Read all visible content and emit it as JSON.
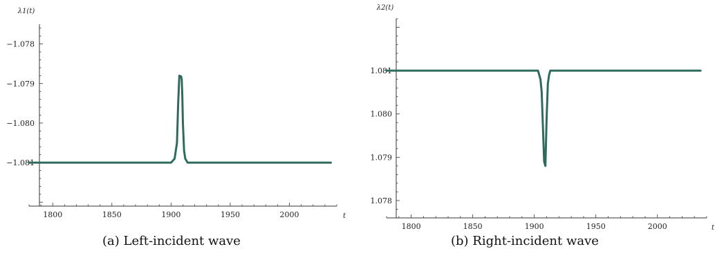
{
  "chart_data": [
    {
      "type": "line",
      "caption": "(a) Left-incident wave",
      "ylabel": "λ1(t)",
      "xlabel": "t",
      "xlim": [
        1780,
        2040
      ],
      "ylim": [
        -1.0821,
        -1.0775
      ],
      "x_ticks": [
        1800,
        1850,
        1900,
        1950,
        2000
      ],
      "y_ticks": [
        -1.081,
        -1.08,
        -1.079,
        -1.078
      ],
      "y_tick_labels": [
        "−1.081",
        "−1.080",
        "−1.079",
        "−1.078"
      ],
      "series": [
        {
          "color": "#2e6b5e",
          "x": [
            1780,
            1900,
            1903,
            1905,
            1906,
            1907,
            1908,
            1908.5,
            1909,
            1909.5,
            1910,
            1911,
            1912,
            1914,
            1920,
            2035
          ],
          "y": [
            -1.081,
            -1.081,
            -1.0809,
            -1.0805,
            -1.0795,
            -1.0788,
            -1.07882,
            -1.07882,
            -1.0789,
            -1.0793,
            -1.08,
            -1.0807,
            -1.0809,
            -1.081,
            -1.081,
            -1.081
          ]
        }
      ]
    },
    {
      "type": "line",
      "caption": "(b) Right-incident wave",
      "ylabel": "λ2(t)",
      "xlabel": "t",
      "xlim": [
        1780,
        2040
      ],
      "ylim": [
        1.0776,
        1.0822
      ],
      "x_ticks": [
        1800,
        1850,
        1900,
        1950,
        2000
      ],
      "y_ticks": [
        1.078,
        1.079,
        1.08,
        1.081
      ],
      "y_tick_labels": [
        "1.078",
        "1.079",
        "1.080",
        "1.081"
      ],
      "series": [
        {
          "color": "#2e6b5e",
          "x": [
            1780,
            1903,
            1904,
            1905,
            1906,
            1907,
            1908,
            1909,
            1910,
            1911,
            1912,
            1913,
            1920,
            2035
          ],
          "y": [
            1.081,
            1.081,
            1.0809,
            1.0808,
            1.0805,
            1.0797,
            1.0789,
            1.0788,
            1.0799,
            1.0807,
            1.0809,
            1.081,
            1.081,
            1.081
          ]
        }
      ]
    }
  ]
}
